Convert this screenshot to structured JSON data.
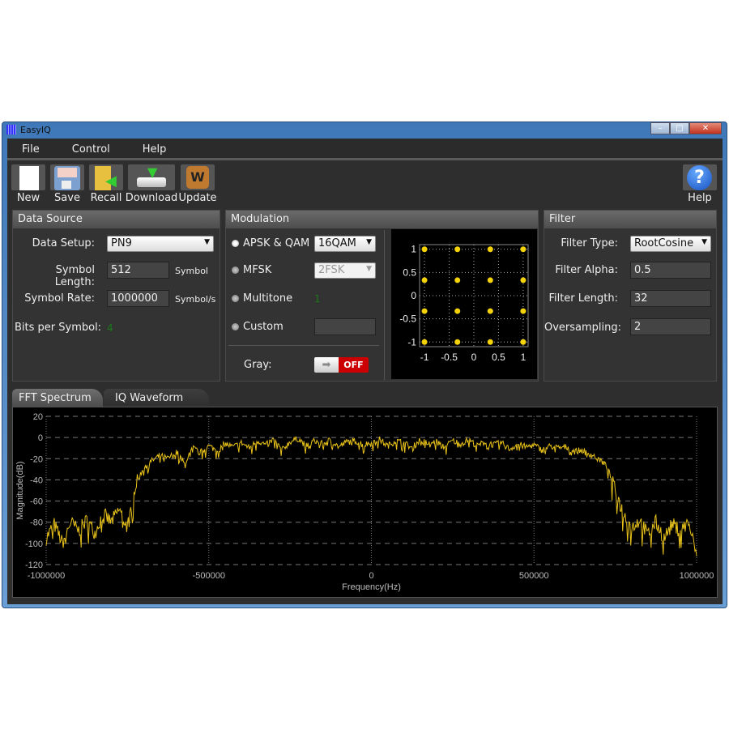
{
  "window": {
    "title": "EasyIQ"
  },
  "menu": [
    "File",
    "Control",
    "Help"
  ],
  "toolbar": {
    "new": "New",
    "save": "Save",
    "recall": "Recall",
    "download": "Download",
    "update": "Update",
    "help": "Help"
  },
  "data_source": {
    "title": "Data Source",
    "data_setup_label": "Data Setup:",
    "data_setup": "PN9",
    "symbol_length_label": "Symbol Length:",
    "symbol_length": "512",
    "symbol_length_unit": "Symbol",
    "symbol_rate_label": "Symbol Rate:",
    "symbol_rate": "1000000",
    "symbol_rate_unit": "Symbol/s",
    "bits_label": "Bits per Symbol:",
    "bits": "4"
  },
  "modulation": {
    "title": "Modulation",
    "apsk_label": "APSK & QAM",
    "apsk_value": "16QAM",
    "mfsk_label": "MFSK",
    "mfsk_value": "2FSK",
    "multitone_label": "Multitone",
    "multitone_value": "1",
    "custom_label": "Custom",
    "custom_value": "",
    "selected": "APSK & QAM",
    "gray_label": "Gray:",
    "gray_state": "OFF",
    "constellation": {
      "type": "scatter",
      "x_ticks": [
        "-1",
        "-0.5",
        "0",
        "0.5",
        "1"
      ],
      "y_ticks": [
        "1",
        "0.5",
        "0",
        "-0.5",
        "-1"
      ],
      "xlim": [
        -1.1,
        1.1
      ],
      "ylim": [
        -1.1,
        1.1
      ],
      "grid": true,
      "point_color": "#f5d30a",
      "points": [
        [
          -1,
          1
        ],
        [
          -0.333,
          1
        ],
        [
          0.333,
          1
        ],
        [
          1,
          1
        ],
        [
          -1,
          0.333
        ],
        [
          -0.333,
          0.333
        ],
        [
          0.333,
          0.333
        ],
        [
          1,
          0.333
        ],
        [
          -1,
          -0.333
        ],
        [
          -0.333,
          -0.333
        ],
        [
          0.333,
          -0.333
        ],
        [
          1,
          -0.333
        ],
        [
          -1,
          -1
        ],
        [
          -0.333,
          -1
        ],
        [
          0.333,
          -1
        ],
        [
          1,
          -1
        ]
      ]
    }
  },
  "filter": {
    "title": "Filter",
    "type_label": "Filter Type:",
    "type": "RootCosine",
    "alpha_label": "Filter Alpha:",
    "alpha": "0.5",
    "length_label": "Filter Length:",
    "length": "32",
    "oversampling_label": "Oversampling:",
    "oversampling": "2"
  },
  "tabs": [
    "FFT Spectrum",
    "IQ Waveform"
  ],
  "active_tab": "FFT Spectrum",
  "chart_data": {
    "type": "line",
    "xlabel": "Frequency(Hz)",
    "ylabel": "Magnitude(dB)",
    "xlim": [
      -1000000,
      1000000
    ],
    "ylim": [
      -120,
      20
    ],
    "grid": true,
    "line_color": "#e8c21a",
    "x_ticks": [
      "-1000000",
      "-500000",
      "0",
      "500000",
      "1000000"
    ],
    "y_ticks": [
      "20",
      "0",
      "-20",
      "-40",
      "-60",
      "-80",
      "-100",
      "-120"
    ],
    "x_start": -1000000,
    "x_step": 25000,
    "y": [
      -95,
      -82,
      -100,
      -80,
      -88,
      -78,
      -90,
      -72,
      -80,
      -68,
      -85,
      -45,
      -28,
      -22,
      -17,
      -20,
      -13,
      -25,
      -10,
      -14,
      -8,
      -12,
      -6,
      -9,
      -5,
      -10,
      -3,
      -7,
      -2,
      -12,
      -4,
      -1,
      -8,
      -3,
      -6,
      -2,
      -9,
      -4,
      -3,
      -7,
      -5,
      -2,
      -8,
      -3,
      -5,
      -10,
      -2,
      -6,
      -4,
      -9,
      -3,
      -6,
      -2,
      -8,
      -4,
      -7,
      -5,
      -11,
      -6,
      -9,
      -7,
      -12,
      -8,
      -10,
      -9,
      -13,
      -12,
      -16,
      -20,
      -28,
      -50,
      -72,
      -85,
      -78,
      -92,
      -80,
      -95,
      -82,
      -88,
      -80,
      -112
    ]
  }
}
